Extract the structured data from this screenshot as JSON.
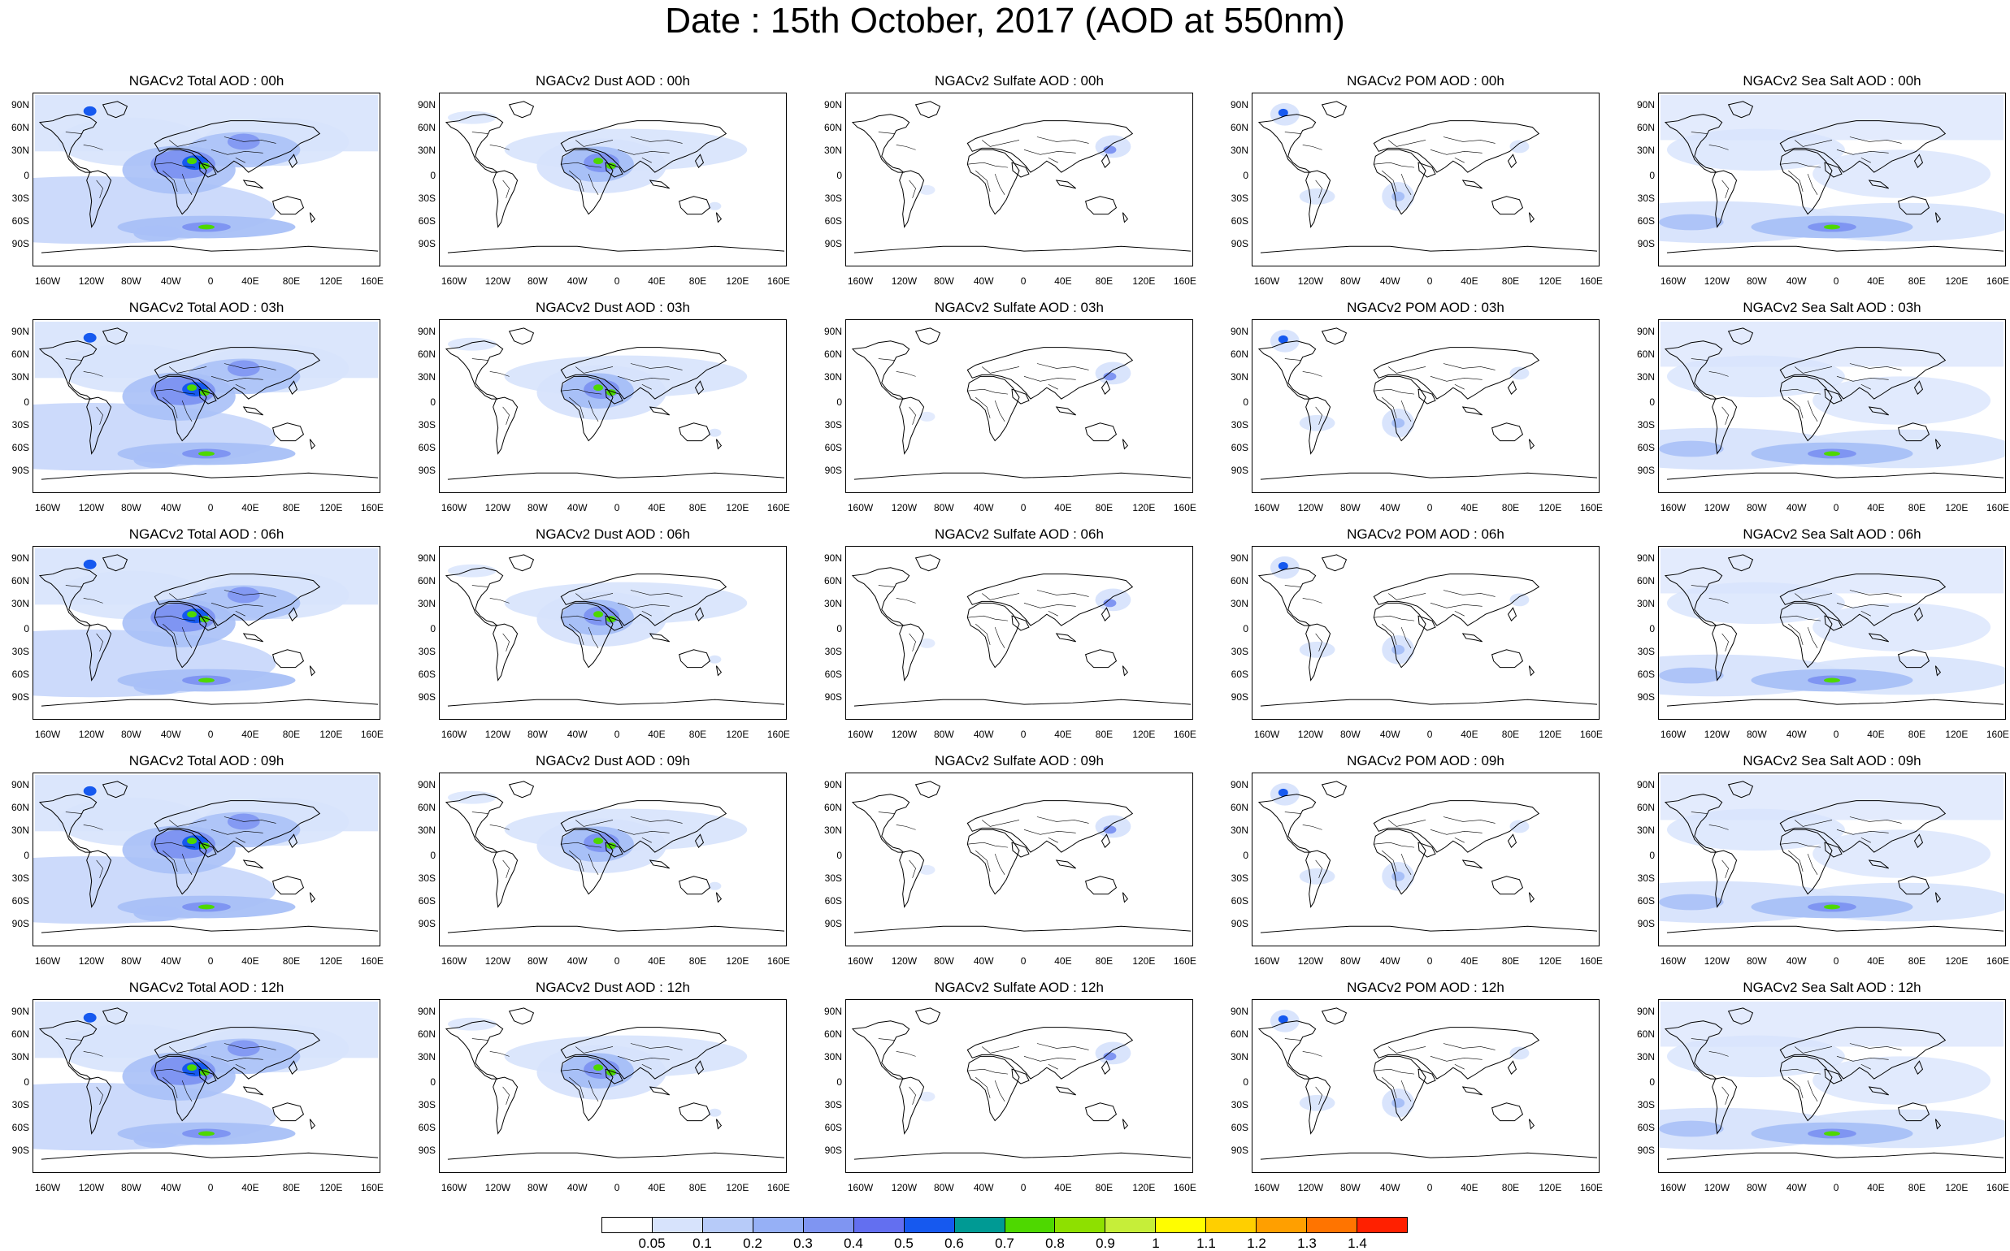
{
  "title": "Date : 15th October, 2017 (AOD at 550nm)",
  "panel_titles": [
    [
      "NGACv2 Total AOD : 00h",
      "NGACv2 Dust AOD : 00h",
      "NGACv2 Sulfate AOD : 00h",
      "NGACv2 POM AOD : 00h",
      "NGACv2 Sea Salt AOD : 00h"
    ],
    [
      "NGACv2 Total AOD : 03h",
      "NGACv2 Dust AOD : 03h",
      "NGACv2 Sulfate AOD : 03h",
      "NGACv2 POM AOD : 03h",
      "NGACv2 Sea Salt AOD : 03h"
    ],
    [
      "NGACv2 Total AOD : 06h",
      "NGACv2 Dust AOD : 06h",
      "NGACv2 Sulfate AOD : 06h",
      "NGACv2 POM AOD : 06h",
      "NGACv2 Sea Salt AOD : 06h"
    ],
    [
      "NGACv2 Total AOD : 09h",
      "NGACv2 Dust AOD : 09h",
      "NGACv2 Sulfate AOD : 09h",
      "NGACv2 POM AOD : 09h",
      "NGACv2 Sea Salt  AOD : 09h"
    ],
    [
      "NGACv2 Total AOD  : 12h",
      "NGACv2 Dust AOD : 12h",
      "NGACv2 Sulfate AOD : 12h",
      "NGACv2 POM  AOD : 12h",
      "NGACv2 Sea Salt  AOD : 12h"
    ]
  ],
  "lat_ticks": [
    "90N",
    "60N",
    "30N",
    "0",
    "30S",
    "60S",
    "90S"
  ],
  "lon_ticks": [
    "160W",
    "120W",
    "80W",
    "40W",
    "0",
    "40E",
    "80E",
    "120E",
    "160E"
  ],
  "colorbar": {
    "labels": [
      "0.05",
      "0.1",
      "0.2",
      "0.3",
      "0.4",
      "0.5",
      "0.6",
      "0.7",
      "0.8",
      "0.9",
      "1",
      "1.1",
      "1.2",
      "1.3",
      "1.4"
    ],
    "colors": [
      "#ffffff",
      "#d7e3fc",
      "#b7cbf9",
      "#96b0f6",
      "#7f95f2",
      "#636ff0",
      "#1659ef",
      "#009a94",
      "#4ed800",
      "#8ee000",
      "#c6ee39",
      "#fffd00",
      "#ffcf00",
      "#ff9f00",
      "#ff7400",
      "#ff2000"
    ]
  },
  "map_layers": {
    "background": "#ffffff",
    "light": "#d7e3fc",
    "medium": "#a8c0f7",
    "strong": "#7f95f2",
    "peak": "#1659ef",
    "hot": "#4ed800",
    "coastline": "#000000"
  }
}
